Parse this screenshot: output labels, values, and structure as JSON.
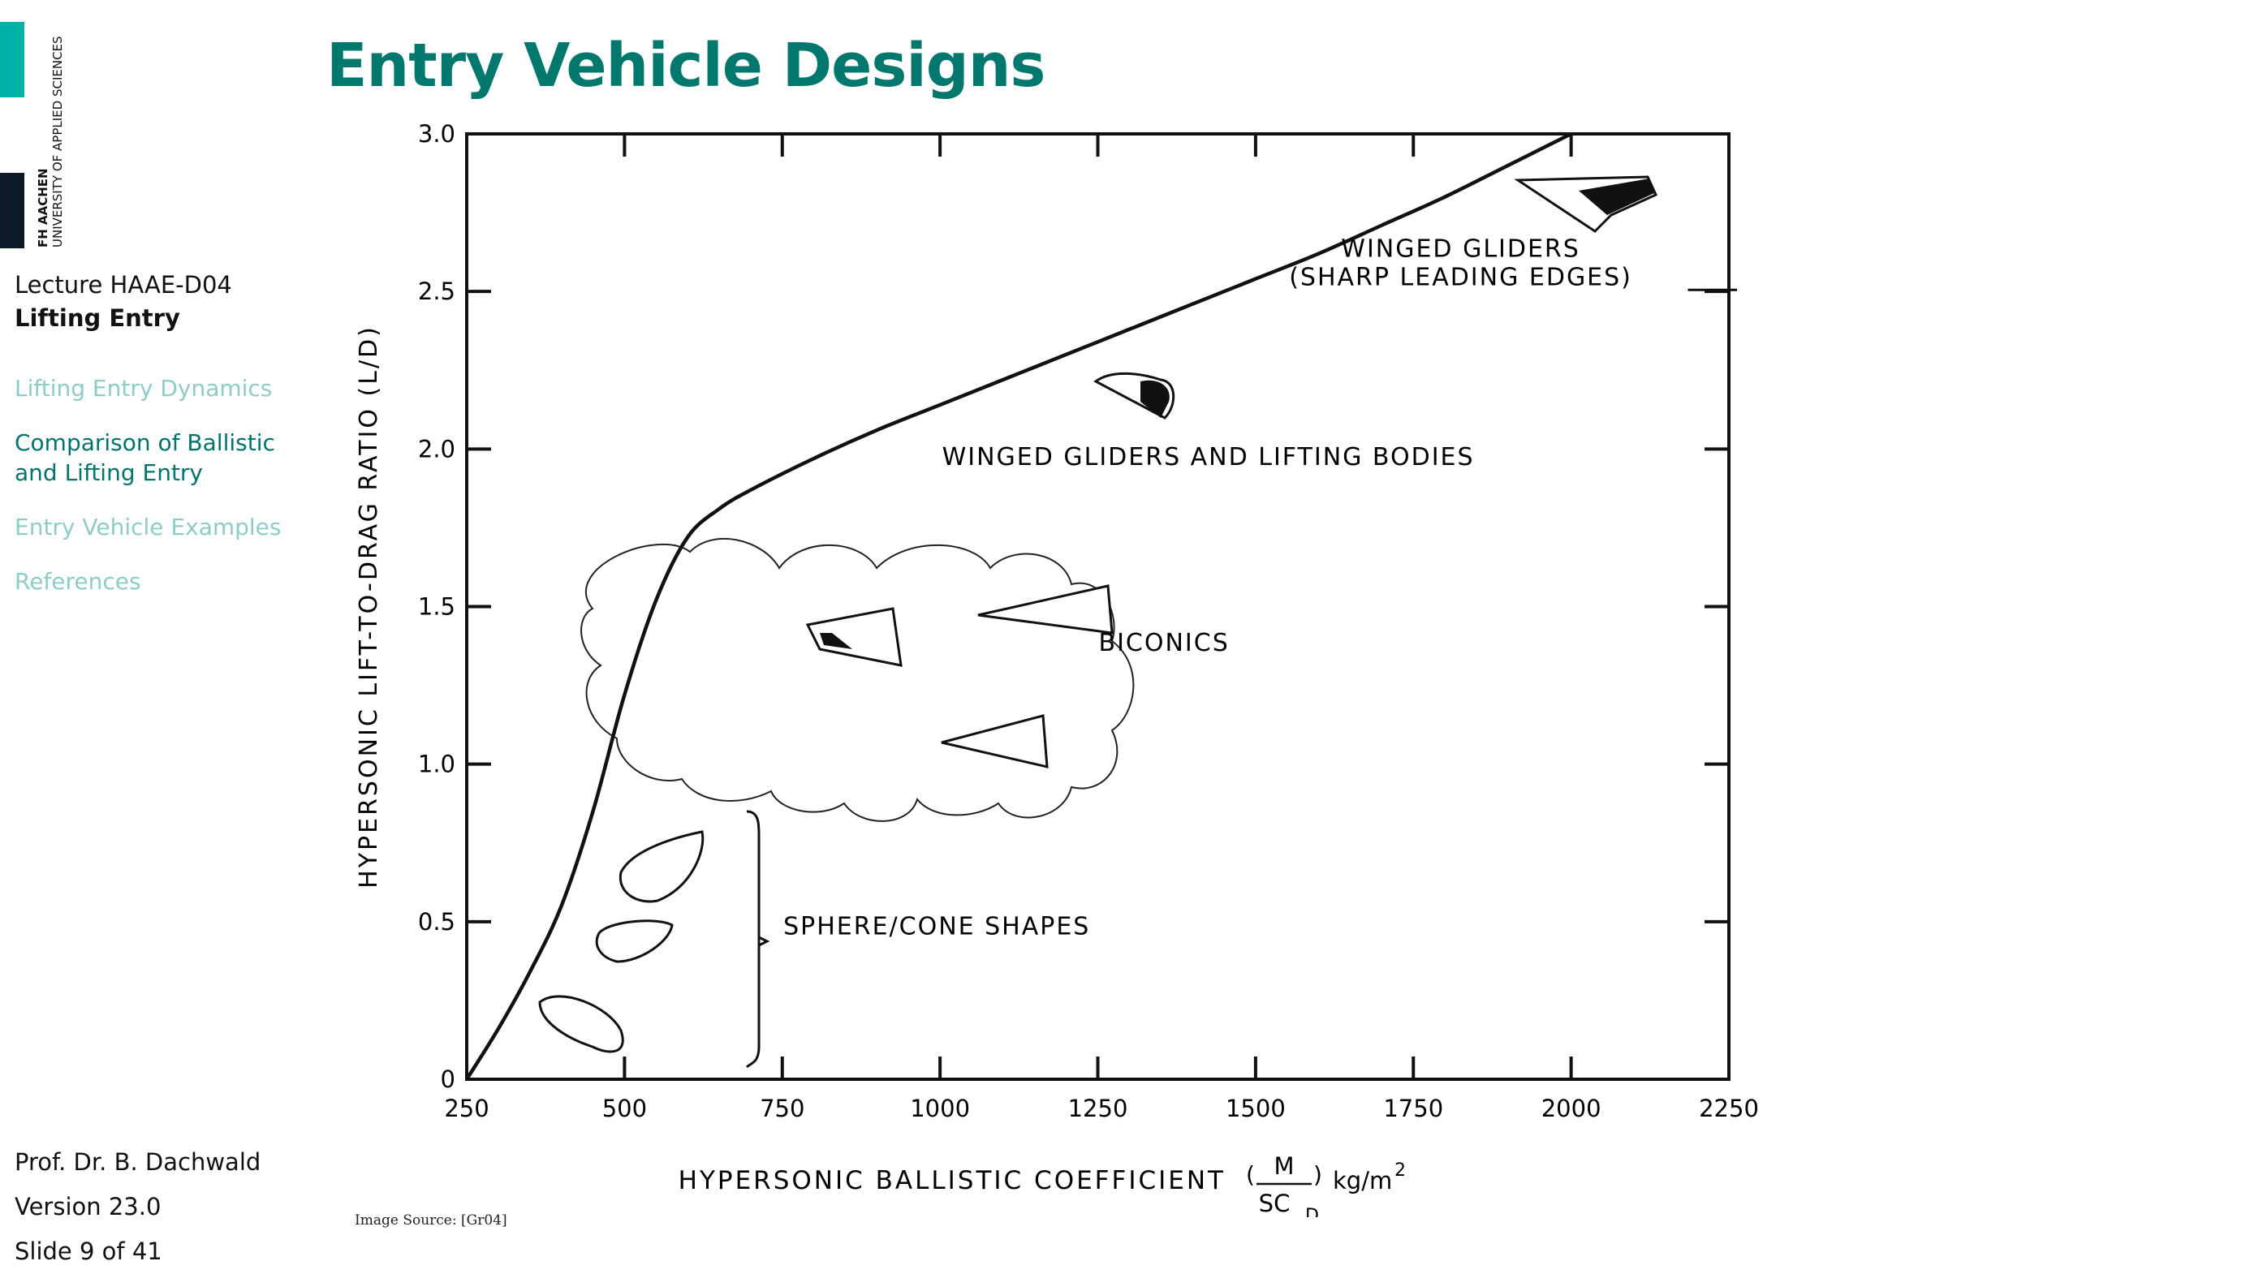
{
  "header": {
    "title": "Entry Vehicle Designs"
  },
  "logo": {
    "name": "FH AACHEN",
    "subtitle": "UNIVERSITY OF APPLIED SCIENCES",
    "accent_color": "#00b1a5",
    "dark_color": "#0b1a26"
  },
  "sidebar": {
    "lecture_code": "Lecture HAAE-D04",
    "lecture_title": "Lifting Entry",
    "nav": [
      {
        "label": "Lifting Entry Dynamics",
        "state": "inactive"
      },
      {
        "label": "Comparison of Ballistic and Lifting Entry",
        "state": "active"
      },
      {
        "label": "Entry Vehicle Examples",
        "state": "inactive"
      },
      {
        "label": "References",
        "state": "inactive"
      }
    ]
  },
  "footer": {
    "author": "Prof. Dr. B. Dachwald",
    "version": "Version 23.0",
    "slide": "Slide 9 of 41"
  },
  "image_source": "Image Source: [Gr04]",
  "chart_data": {
    "type": "line",
    "title": "",
    "xlabel": "HYPERSONIC BALLISTIC COEFFICIENT",
    "xlabel_formula": {
      "num": "M",
      "den": "SC",
      "sub": "D",
      "unit": "kg/m",
      "exp": "2"
    },
    "ylabel": "HYPERSONIC LIFT-TO-DRAG RATIO (L/D)",
    "xlim": [
      250,
      2250
    ],
    "ylim": [
      0,
      3.0
    ],
    "x_ticks": [
      250,
      500,
      750,
      1000,
      1250,
      1500,
      1750,
      2000,
      2250
    ],
    "y_ticks": [
      0,
      0.5,
      1.0,
      1.5,
      2.0,
      2.5,
      3.0
    ],
    "y_tick_labels": [
      "0",
      "0.5",
      "1.0",
      "1.5",
      "2.0",
      "2.5",
      "3.0"
    ],
    "grid": false,
    "series": [
      {
        "x": [
          250,
          300,
          350,
          400,
          450,
          500,
          550,
          600,
          650,
          700,
          800,
          900,
          1000,
          1100,
          1200,
          1300,
          1400,
          1500,
          1600,
          1700,
          1800,
          1900,
          2000
        ],
        "y": [
          0,
          0.16,
          0.34,
          0.55,
          0.85,
          1.22,
          1.52,
          1.72,
          1.81,
          1.87,
          1.97,
          2.06,
          2.14,
          2.22,
          2.3,
          2.38,
          2.46,
          2.54,
          2.62,
          2.71,
          2.8,
          2.9,
          3.0
        ]
      }
    ],
    "annotations": [
      {
        "text": "WINGED GLIDERS",
        "x": 1825,
        "y": 2.61
      },
      {
        "text": "(SHARP LEADING EDGES)",
        "x": 1825,
        "y": 2.52
      },
      {
        "text": "WINGED GLIDERS AND LIFTING BODIES",
        "x": 1425,
        "y": 1.95
      },
      {
        "text": "BICONICS",
        "x": 1355,
        "y": 1.36
      },
      {
        "text": "SPHERE/CONE SHAPES",
        "x": 995,
        "y": 0.46
      }
    ]
  }
}
